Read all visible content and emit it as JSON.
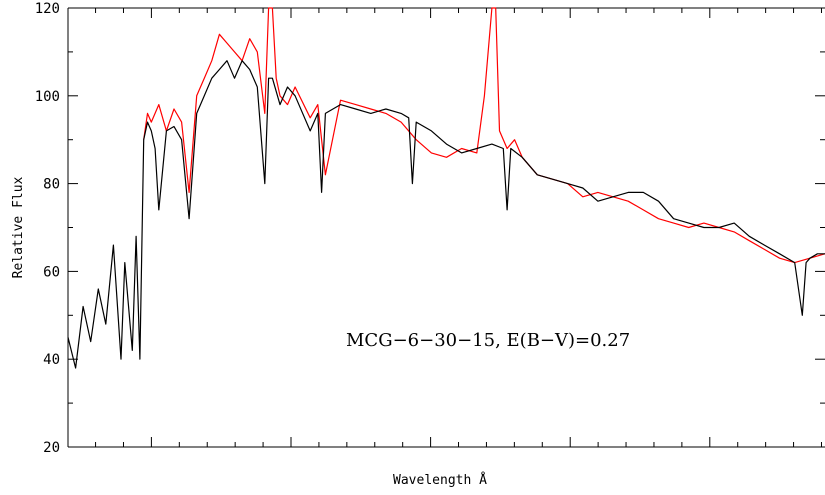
{
  "chart_data": {
    "type": "line",
    "title": "",
    "xlabel": "Wavelength Å",
    "ylabel": "Relative Flux",
    "ylim": [
      20,
      120
    ],
    "yticks": [
      20,
      40,
      60,
      80,
      100,
      120
    ],
    "xticks_labeled": false,
    "annotation": "MCG−6−30−15,  E(B−V)=0.27",
    "grid": false,
    "legend": "none",
    "series": [
      {
        "color": "#000000",
        "x": [
          0.0,
          0.01,
          0.02,
          0.03,
          0.04,
          0.05,
          0.06,
          0.07,
          0.075,
          0.085,
          0.09,
          0.095,
          0.1,
          0.105,
          0.11,
          0.115,
          0.12,
          0.13,
          0.14,
          0.15,
          0.16,
          0.17,
          0.18,
          0.19,
          0.2,
          0.21,
          0.22,
          0.23,
          0.24,
          0.25,
          0.26,
          0.265,
          0.27,
          0.28,
          0.29,
          0.3,
          0.32,
          0.33,
          0.335,
          0.34,
          0.36,
          0.38,
          0.4,
          0.42,
          0.44,
          0.45,
          0.455,
          0.46,
          0.48,
          0.5,
          0.52,
          0.54,
          0.56,
          0.575,
          0.58,
          0.585,
          0.6,
          0.62,
          0.64,
          0.66,
          0.68,
          0.7,
          0.72,
          0.74,
          0.76,
          0.78,
          0.8,
          0.82,
          0.84,
          0.86,
          0.88,
          0.9,
          0.92,
          0.94,
          0.96,
          0.97,
          0.975,
          0.98,
          0.99,
          1.0
        ],
        "y": [
          45,
          38,
          52,
          44,
          56,
          48,
          66,
          40,
          62,
          42,
          68,
          40,
          90,
          94,
          92,
          88,
          74,
          92,
          93,
          90,
          72,
          96,
          100,
          104,
          106,
          108,
          104,
          108,
          106,
          102,
          80,
          104,
          104,
          98,
          102,
          100,
          92,
          96,
          78,
          96,
          98,
          97,
          96,
          97,
          96,
          95,
          80,
          94,
          92,
          89,
          87,
          88,
          89,
          88,
          74,
          88,
          86,
          82,
          81,
          80,
          79,
          76,
          77,
          78,
          78,
          76,
          72,
          71,
          70,
          70,
          71,
          68,
          66,
          64,
          62,
          50,
          62,
          63,
          64,
          64
        ]
      },
      {
        "color": "#ff0000",
        "x": [
          0.1,
          0.105,
          0.11,
          0.12,
          0.13,
          0.14,
          0.15,
          0.16,
          0.17,
          0.18,
          0.19,
          0.2,
          0.21,
          0.22,
          0.23,
          0.24,
          0.25,
          0.26,
          0.265,
          0.27,
          0.275,
          0.28,
          0.29,
          0.3,
          0.32,
          0.33,
          0.34,
          0.36,
          0.38,
          0.4,
          0.42,
          0.44,
          0.46,
          0.48,
          0.5,
          0.52,
          0.54,
          0.55,
          0.56,
          0.565,
          0.57,
          0.58,
          0.59,
          0.6,
          0.62,
          0.64,
          0.66,
          0.68,
          0.7,
          0.72,
          0.74,
          0.76,
          0.78,
          0.8,
          0.82,
          0.84,
          0.86,
          0.88,
          0.9,
          0.92,
          0.94,
          0.96,
          0.98,
          1.0
        ],
        "y": [
          90,
          96,
          94,
          98,
          92,
          97,
          94,
          78,
          100,
          104,
          108,
          114,
          112,
          110,
          108,
          113,
          110,
          96,
          120,
          120,
          104,
          100,
          98,
          102,
          95,
          98,
          82,
          99,
          98,
          97,
          96,
          94,
          90,
          87,
          86,
          88,
          87,
          100,
          120,
          120,
          92,
          88,
          90,
          86,
          82,
          81,
          80,
          77,
          78,
          77,
          76,
          74,
          72,
          71,
          70,
          71,
          70,
          69,
          67,
          65,
          63,
          62,
          63,
          64
        ]
      }
    ]
  }
}
